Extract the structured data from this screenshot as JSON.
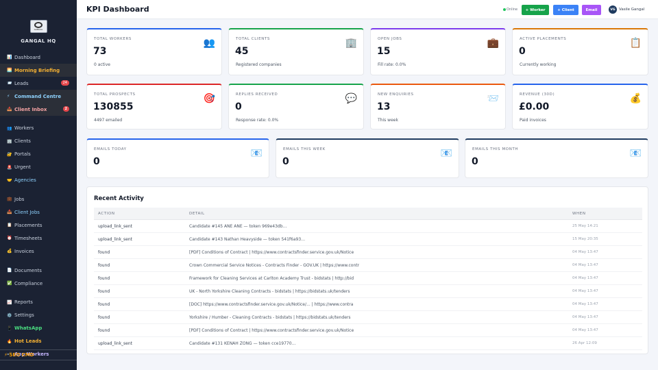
{
  "sidebar": {
    "logo_text": "GANGAL",
    "brand": "GANGAL HQ",
    "items": [
      {
        "icon": "📊",
        "label": "Dashboard"
      },
      {
        "icon": "🌅",
        "label": "Morning Briefing"
      },
      {
        "icon": "📨",
        "label": "Leads",
        "badge": "24"
      },
      {
        "icon": "⚡",
        "label": "Command Centre"
      },
      {
        "icon": "📥",
        "label": "Client Inbox",
        "badge": "2"
      },
      {
        "icon": "👥",
        "label": "Workers"
      },
      {
        "icon": "🏢",
        "label": "Clients"
      },
      {
        "icon": "🔐",
        "label": "Portals"
      },
      {
        "icon": "🚨",
        "label": "Urgent"
      },
      {
        "icon": "🤝",
        "label": "Agencies"
      },
      {
        "icon": "💼",
        "label": "Jobs"
      },
      {
        "icon": "📥",
        "label": "Client Jobs"
      },
      {
        "icon": "📋",
        "label": "Placements"
      },
      {
        "icon": "⏰",
        "label": "Timesheets"
      },
      {
        "icon": "💰",
        "label": "Invoices"
      },
      {
        "icon": "📄",
        "label": "Documents"
      },
      {
        "icon": "✅",
        "label": "Compliance"
      },
      {
        "icon": "📈",
        "label": "Reports"
      },
      {
        "icon": "⚙️",
        "label": "Settings"
      },
      {
        "icon": "📱",
        "label": "WhatsApp"
      },
      {
        "icon": "🔥",
        "label": "Hot Leads"
      },
      {
        "icon": "📲",
        "label": "App Workers"
      }
    ],
    "seo_cmd": "⚡ SEO CMD"
  },
  "header": {
    "title": "KPI Dashboard",
    "status": "Online",
    "buttons": {
      "worker": "+ Worker",
      "client": "+ Client",
      "email": "Email"
    },
    "user_initials": "VG",
    "user_name": "Vasile Gangal"
  },
  "kpis": [
    {
      "label": "TOTAL WORKERS",
      "value": "73",
      "sub": "0 active",
      "icon": "👥"
    },
    {
      "label": "TOTAL CLIENTS",
      "value": "45",
      "sub": "Registered companies",
      "icon": "🏢"
    },
    {
      "label": "OPEN JOBS",
      "value": "15",
      "sub": "Fill rate: 0.0%",
      "icon": "💼"
    },
    {
      "label": "ACTIVE PLACEMENTS",
      "value": "0",
      "sub": "Currently working",
      "icon": "📋"
    },
    {
      "label": "TOTAL PROSPECTS",
      "value": "130855",
      "sub": "4497 emailed",
      "icon": "🎯"
    },
    {
      "label": "REPLIES RECEIVED",
      "value": "0",
      "sub": "Response rate: 0.0%",
      "icon": "💬"
    },
    {
      "label": "NEW ENQUIRIES",
      "value": "13",
      "sub": "This week",
      "icon": "📨"
    },
    {
      "label": "REVENUE (30D)",
      "value": "£0.00",
      "sub": "Paid invoices",
      "icon": "💰"
    },
    {
      "label": "EMAILS TODAY",
      "value": "0",
      "icon": "📧"
    },
    {
      "label": "EMAILS THIS WEEK",
      "value": "0",
      "icon": "📧"
    },
    {
      "label": "EMAILS THIS MONTH",
      "value": "0",
      "icon": "📧"
    }
  ],
  "colors": {
    "blue": "#2563eb",
    "green": "#16a34a",
    "purple": "#7c3aed",
    "amber": "#d97706",
    "red": "#dc2626",
    "orange": "#ea580c",
    "navy": "#1e3a5f",
    "btn_worker": "#16a34a",
    "btn_client": "#3b82f6",
    "btn_email": "#a855f7"
  },
  "activity": {
    "title": "Recent Activity",
    "headers": [
      "ACTION",
      "DETAIL",
      "WHEN"
    ],
    "rows": [
      {
        "action": "upload_link_sent",
        "detail": "Candidate #145 ANE ANE — token 969e43db…",
        "when": "25 May 14:21"
      },
      {
        "action": "upload_link_sent",
        "detail": "Candidate #143 Nathan Heavyside — token 541f6a93…",
        "when": "15 May 20:35"
      },
      {
        "action": "found",
        "detail": "[PDF] Conditions of Contract | https://www.contractsfinder.service.gov.uk/Notice",
        "when": "04 May 13:47"
      },
      {
        "action": "found",
        "detail": "Crown Commercial Service Notices - Contracts Finder - GOV.UK | https://www.contr",
        "when": "04 May 13:47"
      },
      {
        "action": "found",
        "detail": "Framework for Cleaning Services at Carlton Academy Trust - bidstats | http://bid",
        "when": "04 May 13:47"
      },
      {
        "action": "found",
        "detail": "UK - North Yorkshire Cleaning Contracts - bidstats | https://bidstats.uk/tenders",
        "when": "04 May 13:47"
      },
      {
        "action": "found",
        "detail": "[DOC] https://www.contractsfinder.service.gov.uk/Notice/... | https://www.contra",
        "when": "04 May 13:47"
      },
      {
        "action": "found",
        "detail": "Yorkshire / Humber - Cleaning Contracts - bidstats | https://bidstats.uk/tenders",
        "when": "04 May 13:47"
      },
      {
        "action": "found",
        "detail": "[PDF] Conditions of Contract | https://www.contractsfinder.service.gov.uk/Notice",
        "when": "04 May 13:47"
      },
      {
        "action": "upload_link_sent",
        "detail": "Candidate #131 KENAH ZONG — token cce19770…",
        "when": "26 Apr 12:09"
      }
    ]
  }
}
